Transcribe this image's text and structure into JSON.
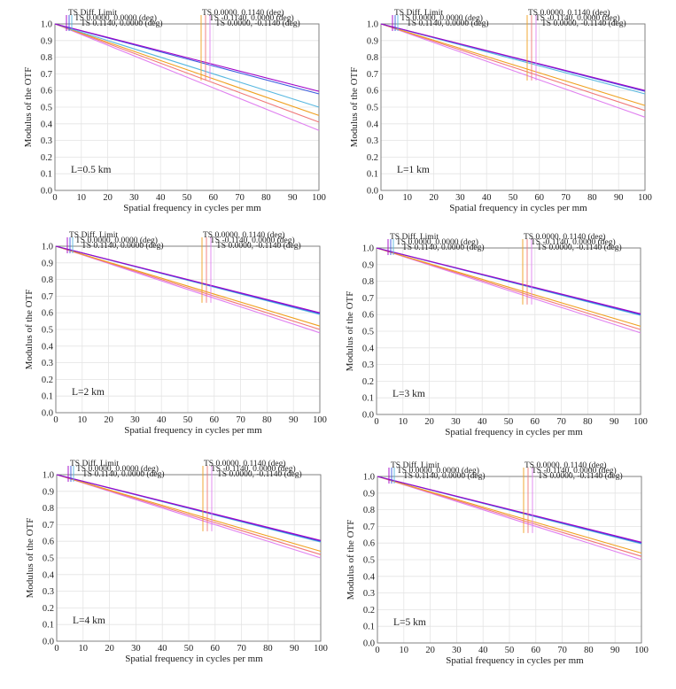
{
  "figure": {
    "ylabel": "Modulus of the OTF",
    "xlabel": "Spatial frequency in cycles per mm",
    "legend": [
      {
        "label": "TS Diff. Limit",
        "color": "#a000c8"
      },
      {
        "label": "TS 0.0000, 0.0000 (deg)",
        "color": "#3a5ae0"
      },
      {
        "label": "TS 0.1140, 0.0000 (deg)",
        "color": "#58b8e0"
      },
      {
        "label": "TS 0.0000, 0.1140 (deg)",
        "color": "#f0a020"
      },
      {
        "label": "TS -0.1140, 0.0000 (deg)",
        "color": "#f07878"
      },
      {
        "label": "TS 0.0000, -0.1140 (deg)",
        "color": "#e080f0"
      }
    ]
  },
  "chart_data": [
    {
      "type": "line",
      "annotation": "L=0.5 km",
      "x": [
        0,
        100
      ],
      "xlim": [
        0,
        100
      ],
      "ylim": [
        0,
        1
      ],
      "xticks": [
        "0",
        "10",
        "20",
        "30",
        "40",
        "50",
        "60",
        "70",
        "80",
        "90",
        "100"
      ],
      "yticks": [
        "0.0",
        "0.1",
        "0.2",
        "0.3",
        "0.4",
        "0.5",
        "0.6",
        "0.7",
        "0.8",
        "0.9",
        "1.0"
      ],
      "grid": true,
      "series": [
        {
          "name": "TS Diff. Limit",
          "values": [
            1.0,
            0.595
          ]
        },
        {
          "name": "TS 0.0000, 0.0000 (deg)",
          "values": [
            1.0,
            0.58
          ]
        },
        {
          "name": "TS 0.1140, 0.0000 (deg)",
          "values": [
            1.0,
            0.5
          ]
        },
        {
          "name": "TS 0.0000, 0.1140 (deg)",
          "values": [
            1.0,
            0.45
          ]
        },
        {
          "name": "TS -0.1140, 0.0000 (deg)",
          "values": [
            1.0,
            0.41
          ]
        },
        {
          "name": "TS 0.0000, -0.1140 (deg)",
          "values": [
            1.0,
            0.36
          ]
        }
      ]
    },
    {
      "type": "line",
      "annotation": "L=1 km",
      "x": [
        0,
        100
      ],
      "xlim": [
        0,
        100
      ],
      "ylim": [
        0,
        1
      ],
      "xticks": [
        "0",
        "10",
        "20",
        "30",
        "40",
        "50",
        "60",
        "70",
        "80",
        "90",
        "100"
      ],
      "yticks": [
        "0.0",
        "0.1",
        "0.2",
        "0.3",
        "0.4",
        "0.5",
        "0.6",
        "0.7",
        "0.8",
        "0.9",
        "1.0"
      ],
      "grid": true,
      "series": [
        {
          "name": "TS Diff. Limit",
          "values": [
            1.0,
            0.6
          ]
        },
        {
          "name": "TS 0.0000, 0.0000 (deg)",
          "values": [
            1.0,
            0.595
          ]
        },
        {
          "name": "TS 0.1140, 0.0000 (deg)",
          "values": [
            1.0,
            0.58
          ]
        },
        {
          "name": "TS 0.0000, 0.1140 (deg)",
          "values": [
            1.0,
            0.51
          ]
        },
        {
          "name": "TS -0.1140, 0.0000 (deg)",
          "values": [
            1.0,
            0.48
          ]
        },
        {
          "name": "TS 0.0000, -0.1140 (deg)",
          "values": [
            1.0,
            0.44
          ]
        }
      ]
    },
    {
      "type": "line",
      "annotation": "L=2 km",
      "x": [
        0,
        100
      ],
      "xlim": [
        0,
        100
      ],
      "ylim": [
        0,
        1
      ],
      "xticks": [
        "0",
        "10",
        "20",
        "30",
        "40",
        "50",
        "60",
        "70",
        "80",
        "90",
        "100"
      ],
      "yticks": [
        "0.0",
        "0.1",
        "0.2",
        "0.3",
        "0.4",
        "0.5",
        "0.6",
        "0.7",
        "0.8",
        "0.9",
        "1.0"
      ],
      "grid": true,
      "series": [
        {
          "name": "TS Diff. Limit",
          "values": [
            1.0,
            0.6
          ]
        },
        {
          "name": "TS 0.0000, 0.0000 (deg)",
          "values": [
            1.0,
            0.595
          ]
        },
        {
          "name": "TS 0.1140, 0.0000 (deg)",
          "values": [
            1.0,
            0.59
          ]
        },
        {
          "name": "TS 0.0000, 0.1140 (deg)",
          "values": [
            1.0,
            0.52
          ]
        },
        {
          "name": "TS -0.1140, 0.0000 (deg)",
          "values": [
            1.0,
            0.5
          ]
        },
        {
          "name": "TS 0.0000, -0.1140 (deg)",
          "values": [
            1.0,
            0.48
          ]
        }
      ]
    },
    {
      "type": "line",
      "annotation": "L=3 km",
      "x": [
        0,
        100
      ],
      "xlim": [
        0,
        100
      ],
      "ylim": [
        0,
        1
      ],
      "xticks": [
        "0",
        "10",
        "20",
        "30",
        "40",
        "50",
        "60",
        "70",
        "80",
        "90",
        "100"
      ],
      "yticks": [
        "0.0",
        "0.1",
        "0.2",
        "0.3",
        "0.4",
        "0.5",
        "0.6",
        "0.7",
        "0.8",
        "0.9",
        "1.0"
      ],
      "grid": true,
      "series": [
        {
          "name": "TS Diff. Limit",
          "values": [
            1.0,
            0.605
          ]
        },
        {
          "name": "TS 0.0000, 0.0000 (deg)",
          "values": [
            1.0,
            0.6
          ]
        },
        {
          "name": "TS 0.1140, 0.0000 (deg)",
          "values": [
            1.0,
            0.595
          ]
        },
        {
          "name": "TS 0.0000, 0.1140 (deg)",
          "values": [
            1.0,
            0.53
          ]
        },
        {
          "name": "TS -0.1140, 0.0000 (deg)",
          "values": [
            1.0,
            0.51
          ]
        },
        {
          "name": "TS 0.0000, -0.1140 (deg)",
          "values": [
            1.0,
            0.49
          ]
        }
      ]
    },
    {
      "type": "line",
      "annotation": "L=4 km",
      "x": [
        0,
        100
      ],
      "xlim": [
        0,
        100
      ],
      "ylim": [
        0,
        1
      ],
      "xticks": [
        "0",
        "10",
        "20",
        "30",
        "40",
        "50",
        "60",
        "70",
        "80",
        "90",
        "100"
      ],
      "yticks": [
        "0.0",
        "0.1",
        "0.2",
        "0.3",
        "0.4",
        "0.5",
        "0.6",
        "0.7",
        "0.8",
        "0.9",
        "1.0"
      ],
      "grid": true,
      "series": [
        {
          "name": "TS Diff. Limit",
          "values": [
            1.0,
            0.605
          ]
        },
        {
          "name": "TS 0.0000, 0.0000 (deg)",
          "values": [
            1.0,
            0.6
          ]
        },
        {
          "name": "TS 0.1140, 0.0000 (deg)",
          "values": [
            1.0,
            0.595
          ]
        },
        {
          "name": "TS 0.0000, 0.1140 (deg)",
          "values": [
            1.0,
            0.54
          ]
        },
        {
          "name": "TS -0.1140, 0.0000 (deg)",
          "values": [
            1.0,
            0.52
          ]
        },
        {
          "name": "TS 0.0000, -0.1140 (deg)",
          "values": [
            1.0,
            0.5
          ]
        }
      ]
    },
    {
      "type": "line",
      "annotation": "L=5 km",
      "x": [
        0,
        100
      ],
      "xlim": [
        0,
        100
      ],
      "ylim": [
        0,
        1
      ],
      "xticks": [
        "0",
        "10",
        "20",
        "30",
        "40",
        "50",
        "60",
        "70",
        "80",
        "90",
        "100"
      ],
      "yticks": [
        "0.0",
        "0.1",
        "0.2",
        "0.3",
        "0.4",
        "0.5",
        "0.6",
        "0.7",
        "0.8",
        "0.9",
        "1.0"
      ],
      "grid": true,
      "series": [
        {
          "name": "TS Diff. Limit",
          "values": [
            1.0,
            0.605
          ]
        },
        {
          "name": "TS 0.0000, 0.0000 (deg)",
          "values": [
            1.0,
            0.6
          ]
        },
        {
          "name": "TS 0.1140, 0.0000 (deg)",
          "values": [
            1.0,
            0.595
          ]
        },
        {
          "name": "TS 0.0000, 0.1140 (deg)",
          "values": [
            1.0,
            0.54
          ]
        },
        {
          "name": "TS -0.1140, 0.0000 (deg)",
          "values": [
            1.0,
            0.52
          ]
        },
        {
          "name": "TS 0.0000, -0.1140 (deg)",
          "values": [
            1.0,
            0.5
          ]
        }
      ]
    }
  ]
}
